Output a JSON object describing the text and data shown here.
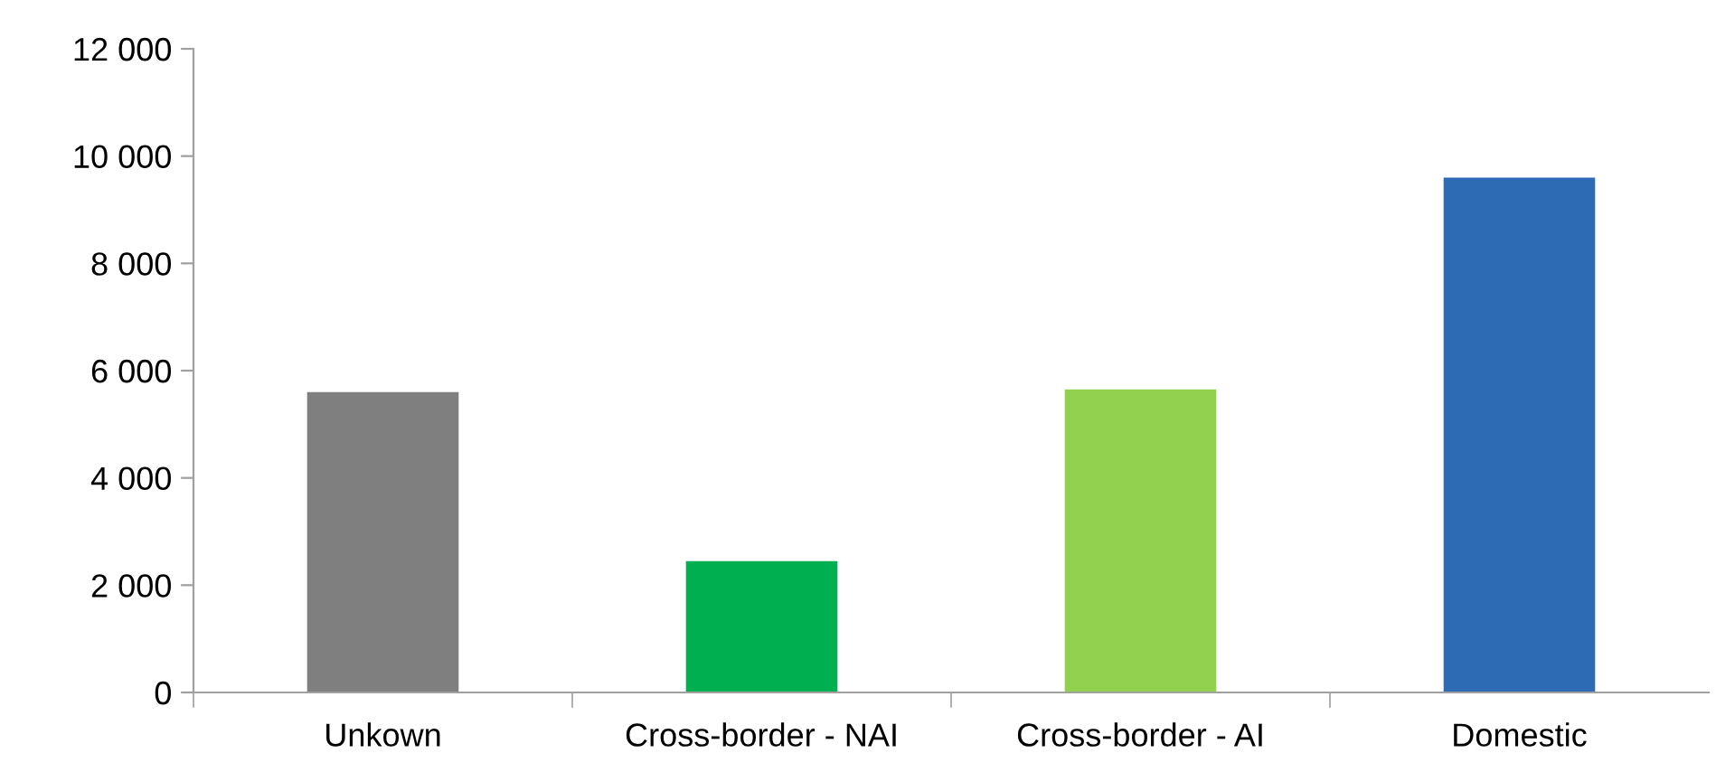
{
  "chart_data": {
    "type": "bar",
    "categories": [
      "Unkown",
      "Cross-border - NAI",
      "Cross-border - AI",
      "Domestic"
    ],
    "values": [
      5600,
      2450,
      5650,
      9600
    ],
    "colors": [
      "#7f7f7f",
      "#00b050",
      "#92d050",
      "#2e6bb5"
    ],
    "ylim": [
      0,
      12000
    ],
    "yticks": [
      {
        "value": 0,
        "label": "0"
      },
      {
        "value": 2000,
        "label": "2 000"
      },
      {
        "value": 4000,
        "label": "4 000"
      },
      {
        "value": 6000,
        "label": "6 000"
      },
      {
        "value": 8000,
        "label": "8 000"
      },
      {
        "value": 10000,
        "label": "10 000"
      },
      {
        "value": 12000,
        "label": "12 000"
      }
    ],
    "grid": false,
    "legend": false
  }
}
